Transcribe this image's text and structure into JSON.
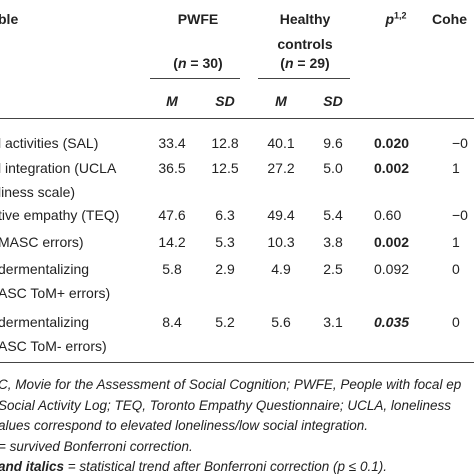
{
  "header": {
    "variable": "ble",
    "pwfe": "PWFE",
    "healthy": [
      "Healthy",
      "controls"
    ],
    "p": "p",
    "p_sup": "1,2",
    "cohen": "Cohe",
    "n_pwfe": [
      "(",
      "n",
      " = 30)"
    ],
    "n_hc": [
      "(",
      "n",
      " = 29)"
    ],
    "stats": [
      "M",
      "SD",
      "M",
      "SD"
    ]
  },
  "rows": [
    {
      "label": [
        "l activities (SAL)"
      ],
      "values": [
        "33.4",
        "12.8",
        "40.1",
        "9.6"
      ],
      "p": "0.020",
      "p_style": "bold",
      "d": "−0"
    },
    {
      "label": [
        "l integration (UCLA",
        "liness scale)"
      ],
      "values": [
        "36.5",
        "12.5",
        "27.2",
        "5.0"
      ],
      "p": "0.002",
      "p_style": "bold",
      "d": "1"
    },
    {
      "label": [
        "tive empathy (TEQ)"
      ],
      "values": [
        "47.6",
        "6.3",
        "49.4",
        "5.4"
      ],
      "p": "0.60",
      "p_style": "plain",
      "d": "−0"
    },
    {
      "label": [
        "MASC errors)"
      ],
      "values": [
        "14.2",
        "5.3",
        "10.3",
        "3.8"
      ],
      "p": "0.002",
      "p_style": "bold",
      "d": "1"
    },
    {
      "label": [
        "dermentalizing",
        "ASC ToM+ errors)"
      ],
      "values": [
        "5.8",
        "2.9",
        "4.9",
        "2.5"
      ],
      "p": "0.092",
      "p_style": "plain",
      "d": "0"
    },
    {
      "label": [
        "dermentalizing",
        "ASC ToM- errors)"
      ],
      "values": [
        "8.4",
        "5.2",
        "5.6",
        "3.1"
      ],
      "p": "0.035",
      "p_style": "bold-italic",
      "d": "0"
    }
  ],
  "footnotes": [
    [
      {
        "text": "C, Movie for the Assessment of Social Cognition; PWFE, People with focal ep",
        "style": "plain"
      }
    ],
    [
      {
        "text": "Social Activity Log; TEQ, Toronto Empathy Questionnaire; UCLA, loneliness",
        "style": "plain"
      }
    ],
    [
      {
        "text": "alues correspond to elevated loneliness/low social integration.",
        "style": "plain"
      }
    ],
    [
      {
        "text": "= survived Bonferroni correction.",
        "style": "plain"
      }
    ],
    [
      {
        "text": "and italics",
        "style": "bold"
      },
      {
        "text": " = statistical trend after Bonferroni correction (p ≤ 0.1).",
        "style": "plain"
      }
    ]
  ]
}
